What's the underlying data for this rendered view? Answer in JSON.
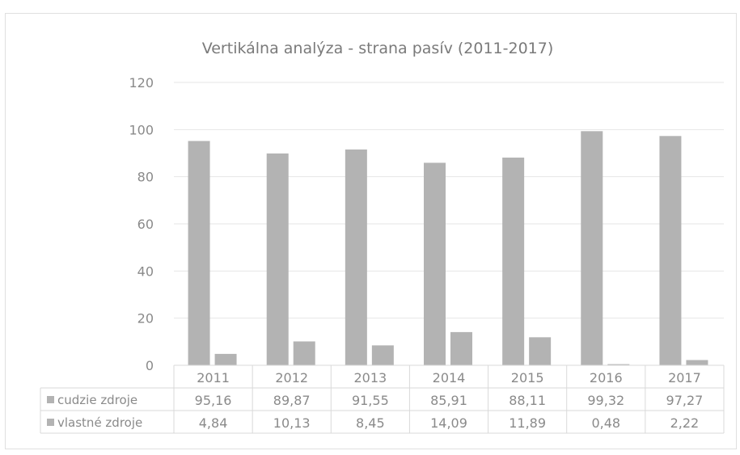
{
  "chart_data": {
    "type": "bar",
    "title": "Vertikálna analýza - strana pasív (2011-2017)",
    "categories": [
      "2011",
      "2012",
      "2013",
      "2014",
      "2015",
      "2016",
      "2017"
    ],
    "series": [
      {
        "name": "cudzie zdroje",
        "values": [
          95.16,
          89.87,
          91.55,
          85.91,
          88.11,
          99.32,
          97.27
        ]
      },
      {
        "name": "vlastné zdroje",
        "values": [
          4.84,
          10.13,
          8.45,
          14.09,
          11.89,
          0.48,
          2.22
        ]
      }
    ],
    "table_values": [
      [
        "95,16",
        "89,87",
        "91,55",
        "85,91",
        "88,11",
        "99,32",
        "97,27"
      ],
      [
        "4,84",
        "10,13",
        "8,45",
        "14,09",
        "11,89",
        "0,48",
        "2,22"
      ]
    ],
    "yticks": [
      "0",
      "20",
      "40",
      "60",
      "80",
      "100",
      "120"
    ],
    "ylim": [
      0,
      120
    ],
    "grid": true,
    "legend": "data-table",
    "colors": {
      "bar": "#b3b3b3",
      "grid": "#e6e6e6",
      "table_border": "#d9d9d9"
    }
  }
}
